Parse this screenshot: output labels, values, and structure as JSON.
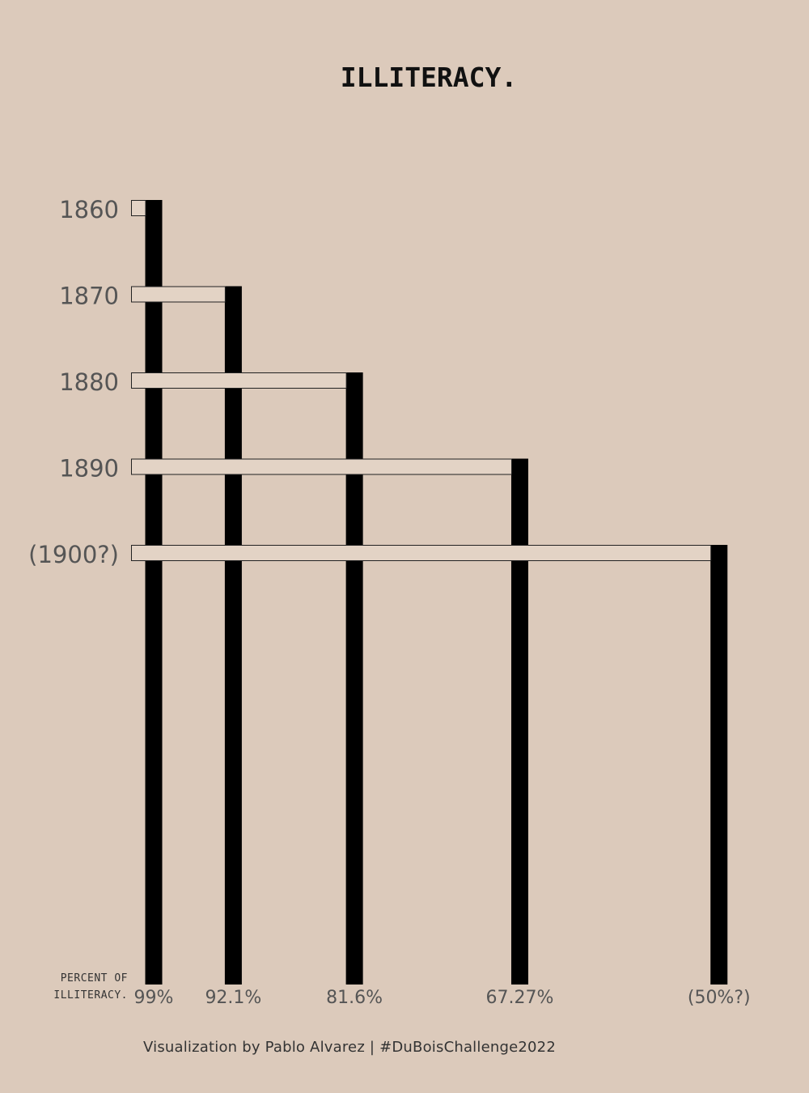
{
  "title": "ILLITERACY.",
  "credit": "Visualization by Pablo Alvarez | #DuBoisChallenge2022",
  "chart_data": {
    "type": "bar",
    "title": "ILLITERACY.",
    "xlabel": "PERCENT OF ILLITERACY.",
    "categories": [
      "1860",
      "1870",
      "1880",
      "1890",
      "(1900?)"
    ],
    "values": [
      99,
      92.1,
      81.6,
      67.27,
      50
    ],
    "value_labels": [
      "99%",
      "92.1%",
      "81.6%",
      "67.27%",
      "(50%?)"
    ],
    "colors": {
      "bar": "#000000",
      "connector_fill": "#e3d3c5",
      "connector_stroke": "#222222",
      "text": "#555555"
    }
  }
}
